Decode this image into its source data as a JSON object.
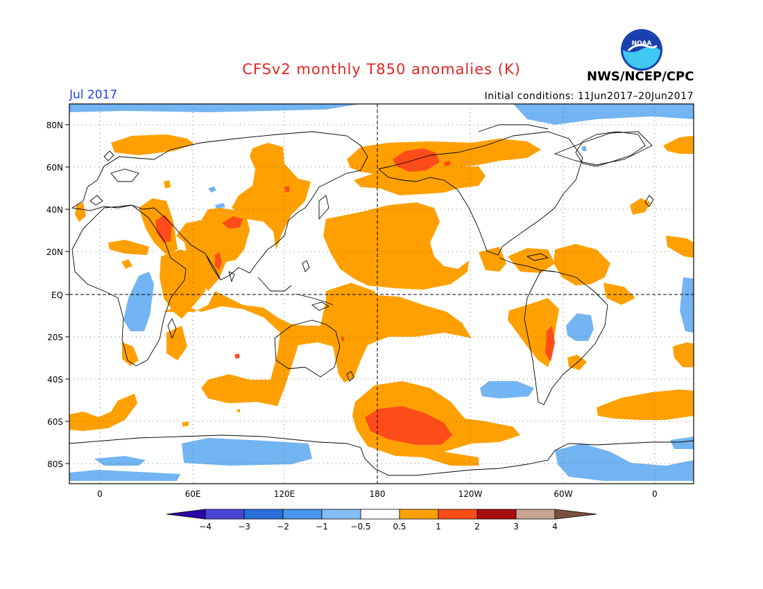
{
  "header": {
    "title": "CFSv2 monthly T850 anomalies (K)",
    "month": "Jul 2017",
    "initial_conditions": "Initial conditions: 11Jun2017–20Jun2017",
    "org": "NWS/NCEP/CPC",
    "logo_text": "NOAA"
  },
  "colors": {
    "title": "#e8231f",
    "month": "#1f43e8",
    "warm_05_1": "#ffa000",
    "warm_1_2": "#ff4d1a",
    "cool_05_1": "#73b4f2"
  },
  "axes": {
    "y_labels": [
      "80N",
      "60N",
      "40N",
      "20N",
      "EQ",
      "20S",
      "40S",
      "60S",
      "80S"
    ],
    "x_labels": [
      "0",
      "60E",
      "120E",
      "180",
      "120W",
      "60W",
      "0"
    ]
  },
  "colorbar": {
    "labels": [
      "−4",
      "−3",
      "−2",
      "−1",
      "−0.5",
      "0.5",
      "1",
      "2",
      "3",
      "4"
    ],
    "colors": [
      "#2a06a6",
      "#4a46d6",
      "#2a6fd8",
      "#4997ec",
      "#85bdf4",
      "#ffffff",
      "#ffa000",
      "#ff4d1a",
      "#a80c0c",
      "#c8a492",
      "#7a5040"
    ]
  }
}
